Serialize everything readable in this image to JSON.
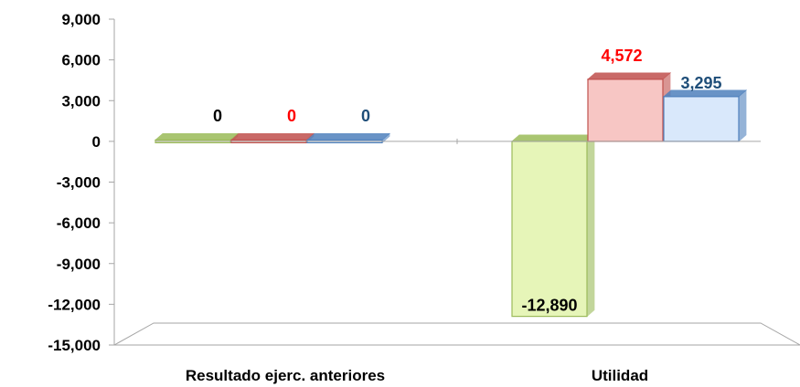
{
  "chart_data": {
    "type": "bar",
    "categories": [
      "Resultado ejerc. anteriores",
      "Utilidad"
    ],
    "series": [
      {
        "values": [
          0,
          -12890
        ],
        "color": "#e6f5b8",
        "edge": "#9bbb59",
        "label_color": "#000000"
      },
      {
        "values": [
          0,
          4572
        ],
        "color": "#f7c6c4",
        "edge": "#c0504d",
        "label_color": "#ff0000"
      },
      {
        "values": [
          0,
          3295
        ],
        "color": "#d9e8fb",
        "edge": "#4f81bd",
        "label_color": "#1f4e79"
      }
    ],
    "data_labels": [
      [
        "0",
        "-12,890"
      ],
      [
        "0",
        "4,572"
      ],
      [
        "0",
        "3,295"
      ]
    ],
    "y_ticks": [
      "9,000",
      "6,000",
      "3,000",
      "0",
      "-3,000",
      "-6,000",
      "-9,000",
      "-12,000",
      "-15,000"
    ],
    "ylim": [
      -15000,
      9000
    ],
    "grid": false,
    "style": "3d"
  }
}
